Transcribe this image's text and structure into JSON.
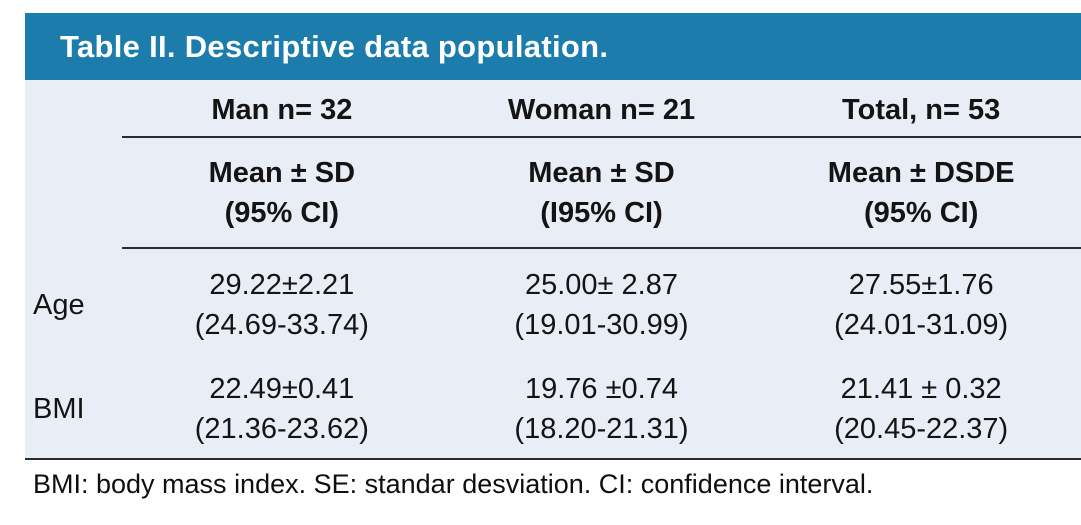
{
  "page": {
    "title": "Table II. Descriptive data population.",
    "footnote": "BMI: body mass index. SE: standar desviation. CI: confidence interval."
  },
  "colors": {
    "header_bg": "#1c7dad",
    "body_bg": "#e9edf6",
    "title_text": "#ffffff",
    "rule": "#2b2b2b",
    "text": "#141414"
  },
  "table": {
    "col_headers": [
      {
        "label": "Man n= 32",
        "sub_line1": "Mean ± SD",
        "sub_line2": "(95% CI)"
      },
      {
        "label": "Woman n= 21",
        "sub_line1": "Mean ± SD",
        "sub_line2": "(I95% CI)"
      },
      {
        "label": "Total, n= 53",
        "sub_line1": "Mean ± DSDE",
        "sub_line2": "(95% CI)"
      }
    ],
    "rows": [
      {
        "label": "Age",
        "cells": [
          {
            "line1": "29.22±2.21",
            "line2": "(24.69-33.74)"
          },
          {
            "line1": "25.00± 2.87",
            "line2": "(19.01-30.99)"
          },
          {
            "line1": "27.55±1.76",
            "line2": "(24.01-31.09)"
          }
        ]
      },
      {
        "label": "BMI",
        "cells": [
          {
            "line1": "22.49±0.41",
            "line2": "(21.36-23.62)"
          },
          {
            "line1": "19.76 ±0.74",
            "line2": "(18.20-21.31)"
          },
          {
            "line1": "21.41 ± 0.32",
            "line2": "(20.45-22.37)"
          }
        ]
      }
    ]
  },
  "chart_data": {
    "type": "table",
    "title": "Table II. Descriptive data population.",
    "columns": [
      "",
      "Man n= 32",
      "Woman n= 21",
      "Total, n= 53"
    ],
    "subheaders": [
      "",
      "Mean ± SD (95% CI)",
      "Mean ± SD (I95% CI)",
      "Mean ± DSDE (95% CI)"
    ],
    "rows": [
      [
        "Age",
        "29.22±2.21 (24.69-33.74)",
        "25.00± 2.87 (19.01-30.99)",
        "27.55±1.76 (24.01-31.09)"
      ],
      [
        "BMI",
        "22.49±0.41 (21.36-23.62)",
        "19.76 ±0.74 (18.20-21.31)",
        "21.41 ± 0.32 (20.45-22.37)"
      ]
    ],
    "footnote": "BMI: body mass index. SE: standar desviation. CI: confidence interval."
  }
}
